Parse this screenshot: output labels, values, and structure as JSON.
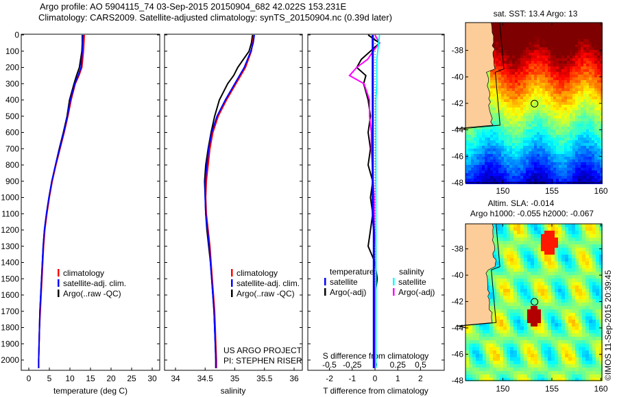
{
  "header": {
    "line1": "Argo profile: AO 5904115_74 03-Sep-2015 20150904_682 42.022S 153.231E",
    "line2": "Climatology: CARS2009. Satellite-adjusted climatology: synTS_20150904.nc (0.39d later)"
  },
  "colors": {
    "climatology": "#ff0000",
    "satellite": "#0000ff",
    "argo": "#000000",
    "sal_satellite": "#00ffff",
    "sal_argo": "#ff00ff",
    "land": "#fccc99"
  },
  "chart_data": [
    {
      "type": "line",
      "title": "temperature",
      "xlabel": "temperature (deg C)",
      "ylabel": "depth",
      "xlim": [
        -2,
        32
      ],
      "ylim": [
        2060,
        0
      ],
      "xticks": [
        "0",
        "5",
        "10",
        "15",
        "20",
        "25",
        "30"
      ],
      "yticks": [
        "0",
        "100",
        "200",
        "300",
        "400",
        "500",
        "600",
        "700",
        "800",
        "900",
        "1000",
        "1100",
        "1200",
        "1300",
        "1400",
        "1500",
        "1600",
        "1700",
        "1800",
        "1900",
        "2000"
      ],
      "depth": [
        0,
        50,
        100,
        200,
        250,
        300,
        400,
        500,
        600,
        700,
        800,
        900,
        1000,
        1100,
        1200,
        1300,
        1400,
        1500,
        1600,
        1700,
        1800,
        1900,
        2000,
        2050
      ],
      "series": [
        {
          "name": "climatology",
          "values": [
            13.5,
            13.4,
            13.3,
            12.9,
            12.2,
            11.3,
            10.3,
            9.5,
            8.6,
            7.6,
            6.6,
            5.7,
            5.0,
            4.4,
            3.9,
            3.6,
            3.4,
            3.2,
            3.0,
            2.8,
            2.6,
            2.5,
            2.4,
            2.4
          ]
        },
        {
          "name": "satellite-adj. clim.",
          "values": [
            13.2,
            13.1,
            13.0,
            12.7,
            12.0,
            11.2,
            10.1,
            9.4,
            8.5,
            7.5,
            6.5,
            5.6,
            4.9,
            4.3,
            3.8,
            3.5,
            3.3,
            3.1,
            2.9,
            2.7,
            2.6,
            2.5,
            2.4,
            2.4
          ]
        },
        {
          "name": "Argo(..raw -QC)",
          "values": [
            13.0,
            13.0,
            12.9,
            12.3,
            11.6,
            11.0,
            9.9,
            9.3,
            8.4,
            7.4,
            6.5,
            5.6,
            4.9,
            4.3,
            3.8,
            3.5,
            3.3,
            3.1,
            2.9,
            2.7,
            2.6,
            2.5,
            2.4,
            2.4
          ]
        }
      ],
      "legend": [
        "climatology",
        "satellite-adj. clim.",
        "Argo(..raw -QC)"
      ],
      "legend_position": "bottom-center"
    },
    {
      "type": "line",
      "title": "salinity",
      "xlabel": "salinity",
      "xlim": [
        33.82,
        36.15
      ],
      "ylim": [
        2060,
        0
      ],
      "xticks": [
        "34",
        "34.5",
        "35",
        "35.5",
        "36"
      ],
      "depth": [
        0,
        50,
        100,
        200,
        250,
        300,
        400,
        500,
        600,
        700,
        800,
        900,
        1000,
        1100,
        1200,
        1300,
        1400,
        1500,
        1600,
        1700,
        1800,
        1900,
        2000,
        2050
      ],
      "series": [
        {
          "name": "climatology",
          "values": [
            35.32,
            35.3,
            35.28,
            35.18,
            35.1,
            35.02,
            34.86,
            34.72,
            34.63,
            34.58,
            34.55,
            34.52,
            34.51,
            34.52,
            34.55,
            34.58,
            34.6,
            34.62,
            34.64,
            34.66,
            34.67,
            34.68,
            34.69,
            34.69
          ]
        },
        {
          "name": "satellite-adj. clim.",
          "values": [
            35.33,
            35.31,
            35.27,
            35.16,
            35.08,
            35.0,
            34.84,
            34.7,
            34.61,
            34.56,
            34.53,
            34.5,
            34.5,
            34.51,
            34.54,
            34.57,
            34.59,
            34.61,
            34.63,
            34.65,
            34.66,
            34.67,
            34.68,
            34.68
          ]
        },
        {
          "name": "Argo(..raw -QC)",
          "values": [
            35.3,
            35.28,
            35.24,
            35.05,
            34.98,
            34.88,
            34.74,
            34.66,
            34.6,
            34.55,
            34.51,
            34.49,
            34.5,
            34.51,
            34.53,
            34.56,
            34.59,
            34.61,
            34.63,
            34.65,
            34.66,
            34.67,
            34.68,
            34.68
          ]
        }
      ],
      "legend": [
        "climatology",
        "satellite-adj. clim.",
        "Argo(..raw -QC)"
      ],
      "annotation": [
        "US ARGO PROJECT",
        "PI: STEPHEN RISER"
      ]
    },
    {
      "type": "line",
      "title": "difference from climatology",
      "xlabel": "T difference from climatology",
      "x2label": "S difference from climatology",
      "xlim": [
        -3,
        3
      ],
      "x2lim": [
        -0.75,
        0.75
      ],
      "xticks": [
        "-2",
        "-1",
        "0",
        "1",
        "2"
      ],
      "x2ticks": [
        "-0.5",
        "-0.25",
        "0",
        "0.25",
        "0.5"
      ],
      "depth": [
        0,
        50,
        100,
        150,
        200,
        250,
        300,
        400,
        500,
        600,
        700,
        800,
        900,
        1000,
        1100,
        1200,
        1300,
        1400,
        1500,
        1600,
        1800,
        2000,
        2050
      ],
      "series": [
        {
          "name": "temperature satellite",
          "values": [
            -0.1,
            -0.1,
            -0.1,
            -0.1,
            -0.1,
            -0.1,
            -0.1,
            -0.1,
            -0.1,
            -0.1,
            -0.1,
            -0.1,
            -0.1,
            -0.1,
            -0.1,
            -0.05,
            -0.05,
            -0.05,
            -0.05,
            -0.05,
            -0.05,
            -0.05,
            -0.05
          ]
        },
        {
          "name": "temperature Argo(-adj)",
          "values": [
            -0.3,
            0.2,
            -0.2,
            -0.6,
            -0.8,
            -0.4,
            -0.5,
            -0.3,
            -0.2,
            -0.3,
            -0.2,
            -0.3,
            -0.1,
            -0.2,
            -0.1,
            -0.2,
            -0.3,
            0.0,
            0.1,
            0.0,
            0.0,
            0.0,
            0.0
          ]
        },
        {
          "name": "salinity satellite",
          "values": [
            0.05,
            0.04,
            0.03,
            0.02,
            0.02,
            0.02,
            0.02,
            0.01,
            0.01,
            0.01,
            0.01,
            0.01,
            0.01,
            0.01,
            0.01,
            0.01,
            0.01,
            0.01,
            0.01,
            0.01,
            0.01,
            0.01,
            0.01
          ]
        },
        {
          "name": "salinity Argo(-adj)",
          "values": [
            0.0,
            0.05,
            -0.02,
            -0.08,
            -0.2,
            -0.28,
            -0.12,
            -0.06,
            -0.06,
            -0.04,
            -0.04,
            -0.03,
            -0.02,
            -0.01,
            -0.01,
            -0.01,
            0.01,
            0.01,
            0.01,
            0.0,
            0.0,
            0.0,
            0.0
          ]
        }
      ],
      "legend": {
        "temperature": "temperature",
        "salinity": "salinity",
        "t_sat": "satellite",
        "t_argo": "Argo(-adj)",
        "s_sat": "satellite",
        "s_argo": "Argo(-adj)"
      }
    },
    {
      "type": "heatmap",
      "title": "sat. SST: 13.4  Argo: 13",
      "xlim": [
        146.2,
        160.1
      ],
      "ylim": [
        -48,
        -35.9
      ],
      "xticks": [
        "150",
        "155",
        "160"
      ],
      "yticks": [
        "-38",
        "-40",
        "-42",
        "-44",
        "-46",
        "-48"
      ],
      "marker": {
        "lon": 153.231,
        "lat": -42.022
      }
    },
    {
      "type": "heatmap",
      "title": "Altim. SLA: -0.014",
      "subtitle": "Argo h1000: -0.055 h2000: -0.067",
      "xlim": [
        146.2,
        160.1
      ],
      "ylim": [
        -48,
        -36.1
      ],
      "xticks": [
        "150",
        "155",
        "160"
      ],
      "yticks": [
        "-38",
        "-40",
        "-42",
        "-44",
        "-46",
        "-48"
      ],
      "marker": {
        "lon": 153.231,
        "lat": -42.022
      }
    }
  ],
  "credit": "©IMOS 11-Sep-2015 20:39:45"
}
